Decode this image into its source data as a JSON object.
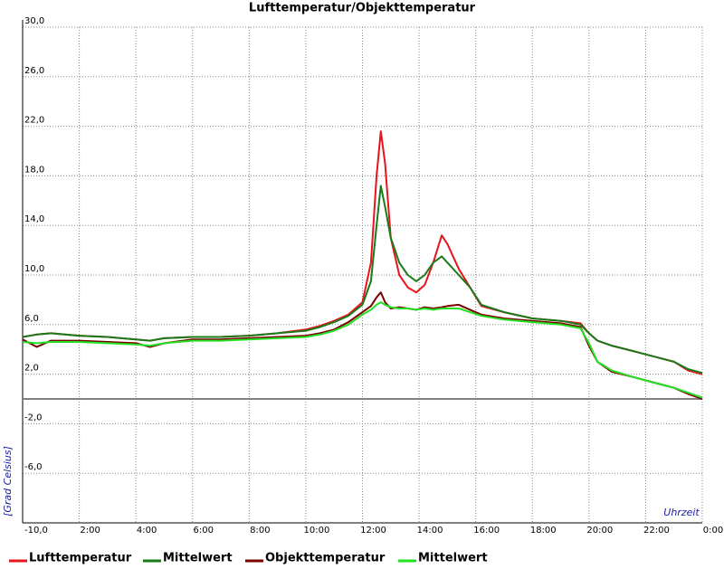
{
  "chart_data": {
    "type": "line",
    "title": "Lufttemperatur/Objekttemperatur",
    "y_label": "[Grad Celsius]",
    "x_label": "Uhrzeit",
    "x": [
      0,
      0.5,
      1,
      1.5,
      2,
      3,
      4,
      4.5,
      5,
      6,
      7,
      8,
      9,
      10,
      10.5,
      11,
      11.5,
      12,
      12.3,
      12.5,
      12.65,
      12.8,
      13,
      13.3,
      13.6,
      13.9,
      14.2,
      14.5,
      14.8,
      15,
      15.4,
      15.8,
      16.2,
      17,
      18,
      19,
      19.7,
      20,
      20.3,
      20.8,
      21.5,
      22,
      22.5,
      23,
      23.5,
      24
    ],
    "series": [
      {
        "name": "Lufttemperatur",
        "color": "#e8141c",
        "values": [
          5.0,
          5.2,
          5.3,
          5.2,
          5.1,
          5.0,
          4.8,
          4.7,
          4.9,
          5.0,
          5.0,
          5.1,
          5.3,
          5.6,
          5.9,
          6.3,
          6.8,
          7.8,
          11,
          18,
          21.6,
          19,
          13,
          10,
          9,
          8.6,
          9.2,
          11,
          13.2,
          12.5,
          10.5,
          9,
          7.5,
          7.0,
          6.5,
          6.3,
          6.1,
          5.3,
          4.7,
          4.3,
          3.9,
          3.6,
          3.3,
          3.0,
          2.3,
          2.0
        ]
      },
      {
        "name": "Mittelwert",
        "color": "#1a7a1a",
        "values": [
          5.0,
          5.2,
          5.3,
          5.2,
          5.1,
          5.0,
          4.8,
          4.7,
          4.9,
          5.0,
          5.0,
          5.1,
          5.3,
          5.5,
          5.8,
          6.2,
          6.7,
          7.6,
          9.5,
          14,
          17.2,
          15.5,
          13,
          11,
          10,
          9.5,
          10,
          11,
          11.5,
          11,
          10,
          9,
          7.6,
          7.0,
          6.5,
          6.3,
          6.0,
          5.3,
          4.7,
          4.3,
          3.9,
          3.6,
          3.3,
          3.0,
          2.4,
          2.1
        ]
      },
      {
        "name": "Objekttemperatur",
        "color": "#7a0000",
        "values": [
          4.8,
          4.2,
          4.7,
          4.7,
          4.7,
          4.6,
          4.5,
          4.2,
          4.5,
          4.8,
          4.8,
          4.9,
          5.0,
          5.1,
          5.3,
          5.6,
          6.2,
          7.0,
          7.5,
          8.2,
          8.6,
          7.8,
          7.3,
          7.4,
          7.3,
          7.2,
          7.4,
          7.3,
          7.4,
          7.5,
          7.6,
          7.2,
          6.8,
          6.5,
          6.3,
          6.1,
          5.8,
          4.3,
          3.0,
          2.2,
          1.8,
          1.5,
          1.2,
          0.9,
          0.4,
          0.0
        ]
      },
      {
        "name": "Mittelwert",
        "color": "#22e022",
        "values": [
          4.6,
          4.5,
          4.6,
          4.6,
          4.6,
          4.5,
          4.4,
          4.3,
          4.5,
          4.7,
          4.7,
          4.8,
          4.9,
          5.0,
          5.2,
          5.5,
          6.0,
          6.8,
          7.2,
          7.6,
          7.8,
          7.6,
          7.4,
          7.3,
          7.3,
          7.2,
          7.3,
          7.2,
          7.3,
          7.3,
          7.3,
          7.0,
          6.7,
          6.4,
          6.2,
          6.0,
          5.7,
          4.5,
          3.0,
          2.3,
          1.8,
          1.5,
          1.2,
          0.9,
          0.5,
          0.1
        ]
      }
    ],
    "xlim": [
      0,
      24
    ],
    "xticks": [
      {
        "value": 2,
        "label": "2:00"
      },
      {
        "value": 4,
        "label": "4:00"
      },
      {
        "value": 6,
        "label": "6:00"
      },
      {
        "value": 8,
        "label": "8:00"
      },
      {
        "value": 10,
        "label": "10:00"
      },
      {
        "value": 12,
        "label": "12:00"
      },
      {
        "value": 14,
        "label": "14:00"
      },
      {
        "value": 16,
        "label": "16:00"
      },
      {
        "value": 18,
        "label": "18:00"
      },
      {
        "value": 20,
        "label": "20:00"
      },
      {
        "value": 22,
        "label": "22:00"
      },
      {
        "value": 24,
        "label": "0:00"
      }
    ],
    "ylim": [
      -10,
      30
    ],
    "yticks": [
      {
        "value": -10,
        "label": "-10,0"
      },
      {
        "value": -6,
        "label": "-6,0"
      },
      {
        "value": -2,
        "label": "-2,0"
      },
      {
        "value": 2,
        "label": "2,0"
      },
      {
        "value": 6,
        "label": "6,0"
      },
      {
        "value": 10,
        "label": "10,0"
      },
      {
        "value": 14,
        "label": "14,0"
      },
      {
        "value": 18,
        "label": "18,0"
      },
      {
        "value": 22,
        "label": "22,0"
      },
      {
        "value": 26,
        "label": "26,0"
      },
      {
        "value": 30,
        "label": "30,0"
      }
    ],
    "grid": true,
    "zero_line": true,
    "legend": "bottom"
  }
}
